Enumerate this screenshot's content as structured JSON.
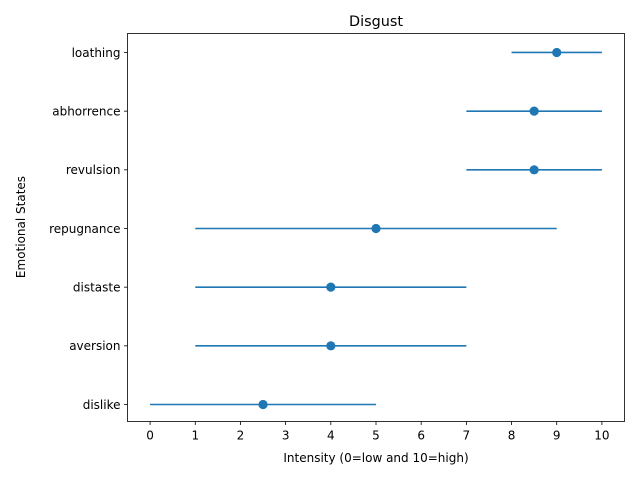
{
  "chart_data": {
    "type": "scatter",
    "title": "Disgust",
    "xlabel": "Intensity (0=low and 10=high)",
    "ylabel": "Emotional States",
    "xlim": [
      -0.5,
      10.5
    ],
    "xticks": [
      0,
      1,
      2,
      3,
      4,
      5,
      6,
      7,
      8,
      9,
      10
    ],
    "xtick_labels": [
      "0",
      "1",
      "2",
      "3",
      "4",
      "5",
      "6",
      "7",
      "8",
      "9",
      "10"
    ],
    "categories": [
      "dislike",
      "aversion",
      "distaste",
      "repugnance",
      "revulsion",
      "abhorrence",
      "loathing"
    ],
    "points": [
      {
        "label": "dislike",
        "value": 2.5,
        "min": 0,
        "max": 5
      },
      {
        "label": "aversion",
        "value": 4,
        "min": 1,
        "max": 7
      },
      {
        "label": "distaste",
        "value": 4,
        "min": 1,
        "max": 7
      },
      {
        "label": "repugnance",
        "value": 5,
        "min": 1,
        "max": 9
      },
      {
        "label": "revulsion",
        "value": 8.5,
        "min": 7,
        "max": 10
      },
      {
        "label": "abhorrence",
        "value": 8.5,
        "min": 7,
        "max": 10
      },
      {
        "label": "loathing",
        "value": 9,
        "min": 8,
        "max": 10
      }
    ],
    "colors": {
      "series": "#1f77b4",
      "axes": "#000000"
    },
    "grid": false,
    "legend": "none"
  }
}
